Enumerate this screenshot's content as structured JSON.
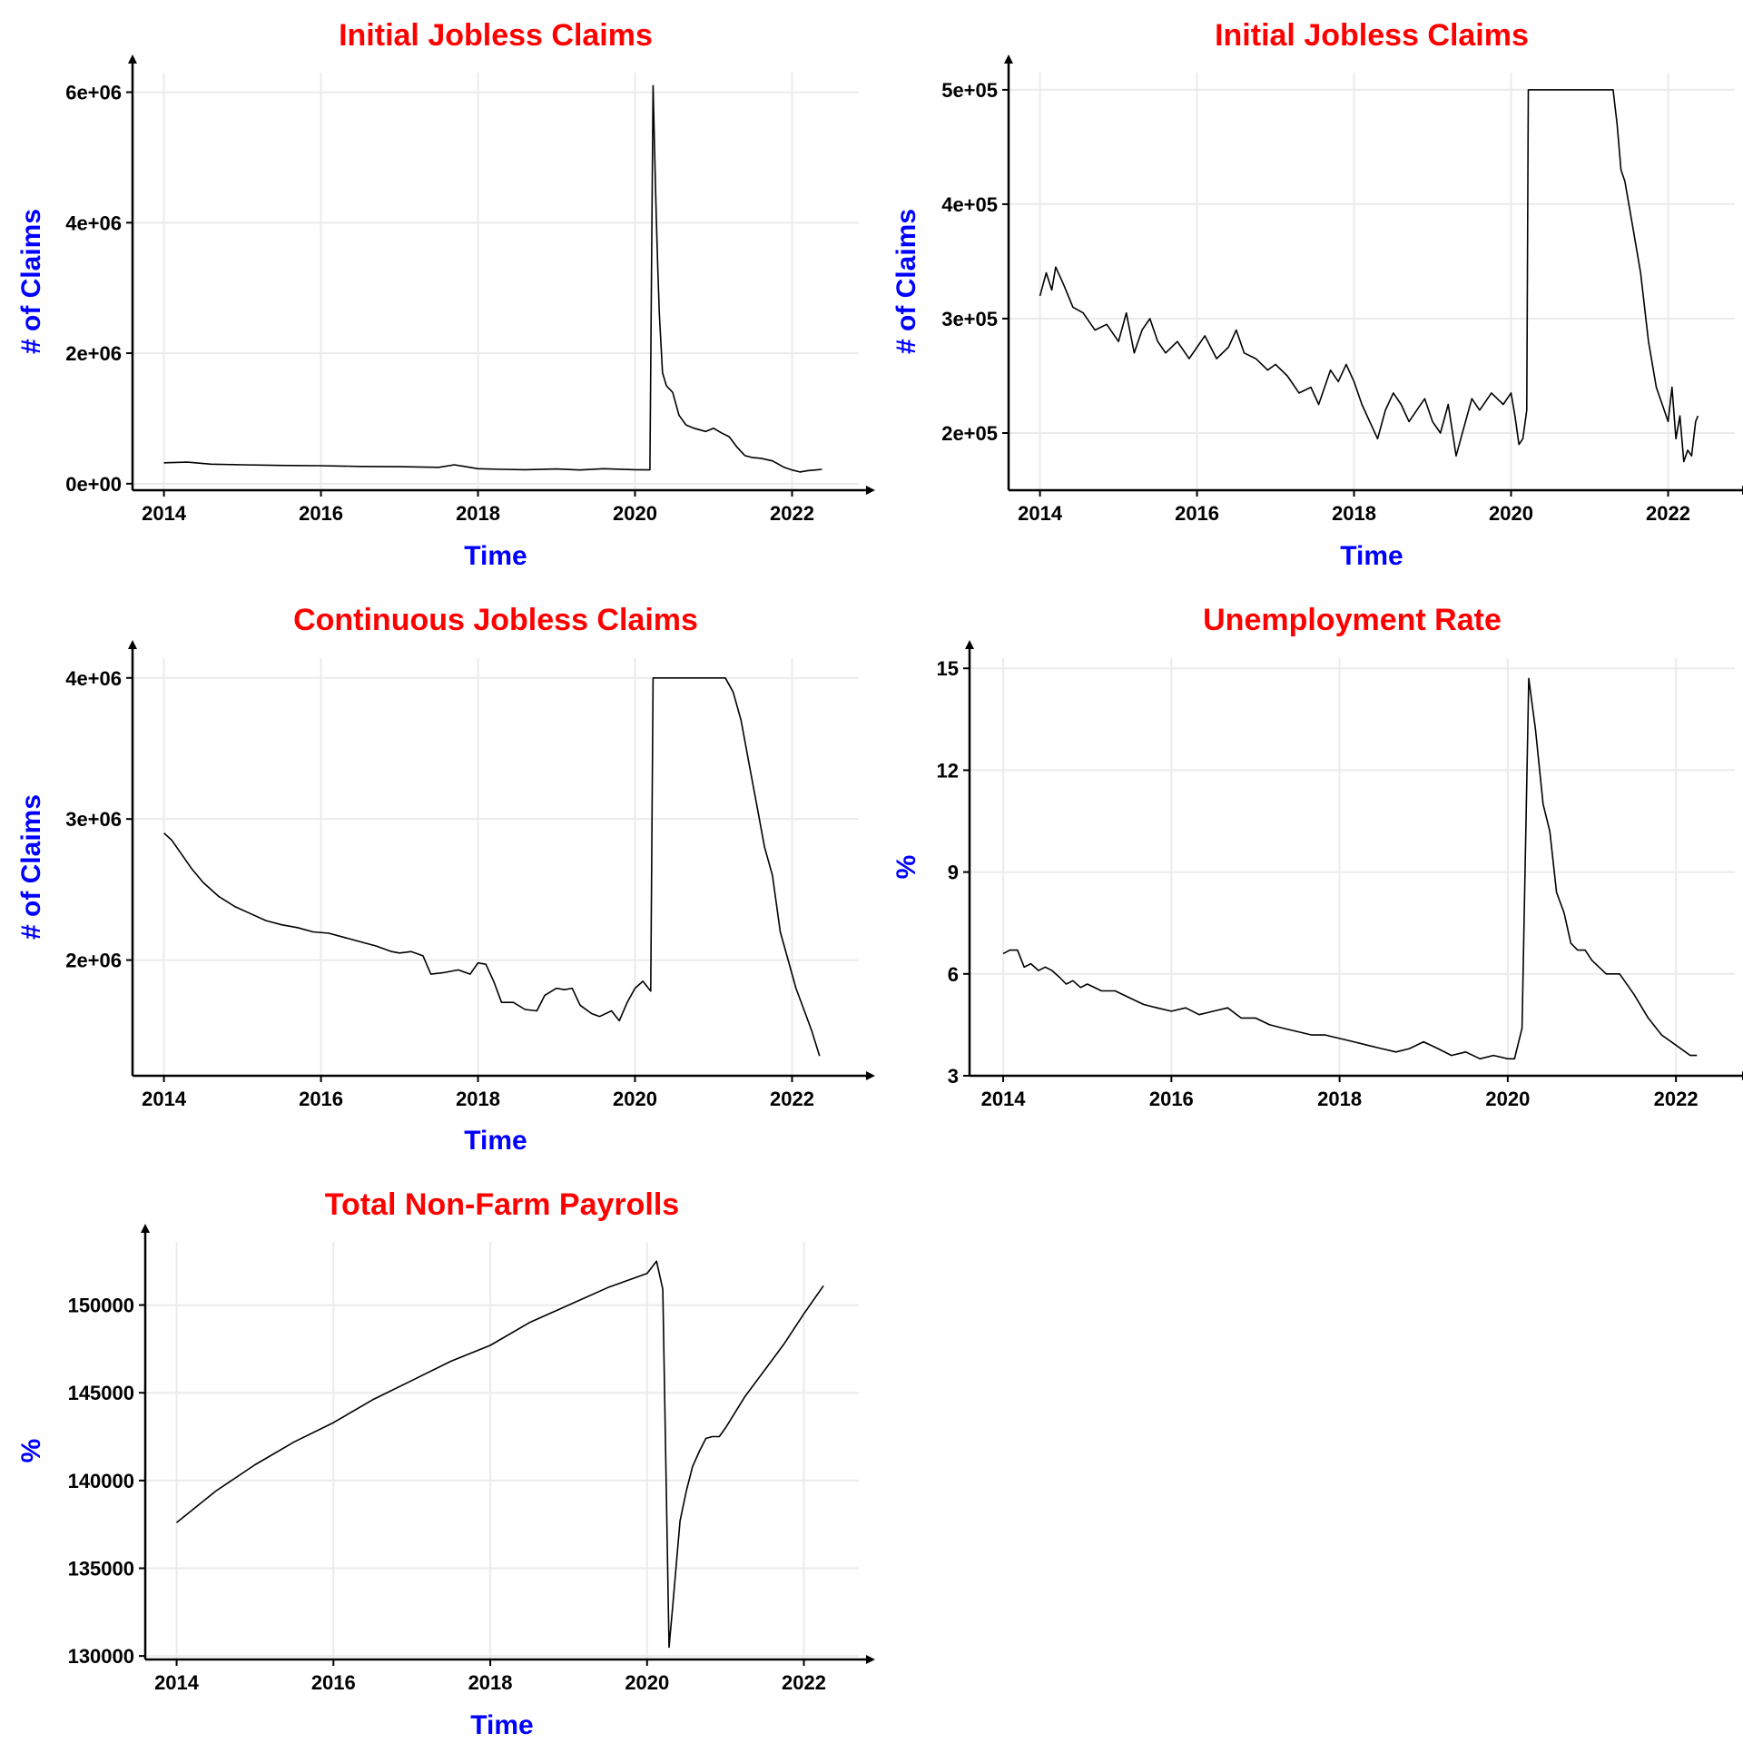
{
  "colors": {
    "title": "#ff0000",
    "axis_title": "#0000ff",
    "line": "#000000",
    "grid": "#ebebeb"
  },
  "chart_data": [
    {
      "type": "line",
      "title": "Initial Jobless Claims",
      "xlabel": "Time",
      "ylabel": "# of Claims",
      "xlim": [
        2013.6,
        2022.85
      ],
      "ylim": [
        -100000,
        6300000
      ],
      "x_ticks": [
        2014,
        2016,
        2018,
        2020,
        2022
      ],
      "x_tick_labels": [
        "2014",
        "2016",
        "2018",
        "2020",
        "2022"
      ],
      "y_ticks": [
        0,
        2000000,
        4000000,
        6000000
      ],
      "y_tick_labels": [
        "0e+00",
        "2e+06",
        "4e+06",
        "6e+06"
      ],
      "grid": true,
      "series": [
        {
          "x": [
            2014.0,
            2014.3,
            2014.6,
            2015.0,
            2015.5,
            2016.0,
            2016.5,
            2017.0,
            2017.5,
            2017.7,
            2018.0,
            2018.3,
            2018.6,
            2019.0,
            2019.3,
            2019.6,
            2020.0,
            2020.19,
            2020.21,
            2020.23,
            2020.25,
            2020.27,
            2020.29,
            2020.31,
            2020.35,
            2020.4,
            2020.48,
            2020.56,
            2020.65,
            2020.75,
            2020.9,
            2021.0,
            2021.1,
            2021.2,
            2021.3,
            2021.4,
            2021.5,
            2021.6,
            2021.75,
            2021.9,
            2022.0,
            2022.1,
            2022.2,
            2022.3,
            2022.38
          ],
          "y": [
            320000,
            330000,
            300000,
            290000,
            280000,
            275000,
            265000,
            260000,
            250000,
            290000,
            230000,
            220000,
            215000,
            225000,
            210000,
            230000,
            215000,
            211000,
            3300000,
            6100000,
            5100000,
            4100000,
            3300000,
            2600000,
            1700000,
            1500000,
            1400000,
            1050000,
            900000,
            850000,
            800000,
            850000,
            780000,
            720000,
            560000,
            430000,
            400000,
            390000,
            350000,
            250000,
            210000,
            180000,
            200000,
            210000,
            220000
          ]
        }
      ]
    },
    {
      "type": "line",
      "title": "Initial Jobless Claims",
      "xlabel": "Time",
      "ylabel": "# of Claims",
      "xlim": [
        2013.6,
        2022.85
      ],
      "ylim": [
        150000,
        515000
      ],
      "x_ticks": [
        2014,
        2016,
        2018,
        2020,
        2022
      ],
      "x_tick_labels": [
        "2014",
        "2016",
        "2018",
        "2020",
        "2022"
      ],
      "y_ticks": [
        200000,
        300000,
        400000,
        500000
      ],
      "y_tick_labels": [
        "2e+05",
        "3e+05",
        "4e+05",
        "5e+05"
      ],
      "grid": true,
      "series": [
        {
          "x": [
            2014.0,
            2014.08,
            2014.15,
            2014.2,
            2014.3,
            2014.42,
            2014.55,
            2014.7,
            2014.85,
            2015.0,
            2015.1,
            2015.2,
            2015.3,
            2015.4,
            2015.5,
            2015.6,
            2015.75,
            2015.9,
            2016.0,
            2016.1,
            2016.25,
            2016.4,
            2016.5,
            2016.6,
            2016.75,
            2016.9,
            2017.0,
            2017.15,
            2017.3,
            2017.45,
            2017.55,
            2017.65,
            2017.7,
            2017.8,
            2017.9,
            2018.0,
            2018.1,
            2018.2,
            2018.3,
            2018.4,
            2018.5,
            2018.6,
            2018.7,
            2018.8,
            2018.9,
            2019.0,
            2019.1,
            2019.2,
            2019.3,
            2019.4,
            2019.5,
            2019.6,
            2019.75,
            2019.9,
            2020.0,
            2020.05,
            2020.1,
            2020.15,
            2020.2,
            2020.22,
            2021.3,
            2021.35,
            2021.4,
            2021.45,
            2021.55,
            2021.65,
            2021.75,
            2021.85,
            2021.95,
            2022.0,
            2022.05,
            2022.1,
            2022.15,
            2022.2,
            2022.25,
            2022.3,
            2022.35,
            2022.38
          ],
          "y": [
            320000,
            340000,
            325000,
            345000,
            330000,
            310000,
            305000,
            290000,
            295000,
            280000,
            305000,
            270000,
            290000,
            300000,
            280000,
            270000,
            280000,
            265000,
            275000,
            285000,
            265000,
            275000,
            290000,
            270000,
            265000,
            255000,
            260000,
            250000,
            235000,
            240000,
            225000,
            245000,
            255000,
            245000,
            260000,
            245000,
            225000,
            210000,
            195000,
            220000,
            235000,
            225000,
            210000,
            220000,
            230000,
            210000,
            200000,
            225000,
            180000,
            205000,
            230000,
            220000,
            235000,
            225000,
            235000,
            215000,
            190000,
            195000,
            220000,
            500000,
            500000,
            470000,
            430000,
            420000,
            380000,
            340000,
            280000,
            240000,
            220000,
            210000,
            240000,
            195000,
            215000,
            175000,
            185000,
            180000,
            210000,
            215000
          ]
        }
      ]
    },
    {
      "type": "line",
      "title": "Continuous Jobless Claims",
      "xlabel": "Time",
      "ylabel": "# of Claims",
      "xlim": [
        2013.6,
        2022.85
      ],
      "ylim": [
        1180000,
        4140000
      ],
      "x_ticks": [
        2014,
        2016,
        2018,
        2020,
        2022
      ],
      "x_tick_labels": [
        "2014",
        "2016",
        "2018",
        "2020",
        "2022"
      ],
      "y_ticks": [
        2000000,
        3000000,
        4000000
      ],
      "y_tick_labels": [
        "2e+06",
        "3e+06",
        "4e+06"
      ],
      "grid": true,
      "series": [
        {
          "x": [
            2014.0,
            2014.1,
            2014.2,
            2014.35,
            2014.5,
            2014.7,
            2014.9,
            2015.1,
            2015.3,
            2015.5,
            2015.7,
            2015.9,
            2016.1,
            2016.3,
            2016.5,
            2016.7,
            2016.9,
            2017.0,
            2017.15,
            2017.3,
            2017.4,
            2017.55,
            2017.75,
            2017.9,
            2018.0,
            2018.1,
            2018.2,
            2018.3,
            2018.45,
            2018.6,
            2018.75,
            2018.85,
            2019.0,
            2019.1,
            2019.2,
            2019.3,
            2019.45,
            2019.55,
            2019.7,
            2019.8,
            2019.9,
            2020.0,
            2020.1,
            2020.2,
            2020.23,
            2021.15,
            2021.25,
            2021.35,
            2021.45,
            2021.55,
            2021.65,
            2021.75,
            2021.85,
            2021.95,
            2022.05,
            2022.15,
            2022.25,
            2022.35
          ],
          "y": [
            2900000,
            2850000,
            2770000,
            2650000,
            2550000,
            2450000,
            2380000,
            2330000,
            2280000,
            2250000,
            2230000,
            2200000,
            2190000,
            2160000,
            2130000,
            2100000,
            2060000,
            2050000,
            2060000,
            2030000,
            1900000,
            1910000,
            1930000,
            1900000,
            1980000,
            1970000,
            1850000,
            1700000,
            1700000,
            1650000,
            1640000,
            1750000,
            1800000,
            1790000,
            1800000,
            1680000,
            1620000,
            1600000,
            1640000,
            1570000,
            1700000,
            1800000,
            1850000,
            1780000,
            4000000,
            4000000,
            3900000,
            3700000,
            3400000,
            3100000,
            2800000,
            2600000,
            2200000,
            2000000,
            1800000,
            1650000,
            1500000,
            1320000
          ]
        }
      ]
    },
    {
      "type": "line",
      "title": "Unemployment Rate",
      "xlabel": "",
      "ylabel": "%",
      "xlim": [
        2013.6,
        2022.7
      ],
      "ylim": [
        3.0,
        15.3
      ],
      "x_ticks": [
        2014,
        2016,
        2018,
        2020,
        2022
      ],
      "x_tick_labels": [
        "2014",
        "2016",
        "2018",
        "2020",
        "2022"
      ],
      "y_ticks": [
        3,
        6,
        9,
        12,
        15
      ],
      "y_tick_labels": [
        "3",
        "6",
        "9",
        "12",
        "15"
      ],
      "grid": true,
      "series": [
        {
          "x": [
            2014.0,
            2014.08,
            2014.17,
            2014.25,
            2014.33,
            2014.42,
            2014.5,
            2014.58,
            2014.67,
            2014.75,
            2014.83,
            2014.92,
            2015.0,
            2015.17,
            2015.33,
            2015.5,
            2015.67,
            2015.83,
            2016.0,
            2016.17,
            2016.33,
            2016.5,
            2016.67,
            2016.83,
            2017.0,
            2017.17,
            2017.33,
            2017.5,
            2017.67,
            2017.83,
            2018.0,
            2018.17,
            2018.33,
            2018.5,
            2018.67,
            2018.83,
            2019.0,
            2019.17,
            2019.33,
            2019.5,
            2019.67,
            2019.83,
            2020.0,
            2020.08,
            2020.17,
            2020.25,
            2020.33,
            2020.42,
            2020.5,
            2020.58,
            2020.67,
            2020.75,
            2020.83,
            2020.92,
            2021.0,
            2021.17,
            2021.33,
            2021.5,
            2021.67,
            2021.83,
            2022.0,
            2022.17,
            2022.25
          ],
          "y": [
            6.6,
            6.7,
            6.7,
            6.2,
            6.3,
            6.1,
            6.2,
            6.1,
            5.9,
            5.7,
            5.8,
            5.6,
            5.7,
            5.5,
            5.5,
            5.3,
            5.1,
            5.0,
            4.9,
            5.0,
            4.8,
            4.9,
            5.0,
            4.7,
            4.7,
            4.5,
            4.4,
            4.3,
            4.2,
            4.2,
            4.1,
            4.0,
            3.9,
            3.8,
            3.7,
            3.8,
            4.0,
            3.8,
            3.6,
            3.7,
            3.5,
            3.6,
            3.5,
            3.5,
            4.4,
            14.7,
            13.2,
            11.0,
            10.2,
            8.4,
            7.8,
            6.9,
            6.7,
            6.7,
            6.4,
            6.0,
            6.0,
            5.4,
            4.7,
            4.2,
            3.9,
            3.6,
            3.6
          ]
        }
      ]
    },
    {
      "type": "line",
      "title": "Total Non-Farm Payrolls",
      "xlabel": "Time",
      "ylabel": "%",
      "xlim": [
        2013.6,
        2022.7
      ],
      "ylim": [
        129800,
        153600
      ],
      "x_ticks": [
        2014,
        2016,
        2018,
        2020,
        2022
      ],
      "x_tick_labels": [
        "2014",
        "2016",
        "2018",
        "2020",
        "2022"
      ],
      "y_ticks": [
        130000,
        135000,
        140000,
        145000,
        150000
      ],
      "y_tick_labels": [
        "130000",
        "135000",
        "140000",
        "145000",
        "150000"
      ],
      "grid": true,
      "series": [
        {
          "x": [
            2014.0,
            2014.5,
            2015.0,
            2015.5,
            2016.0,
            2016.5,
            2017.0,
            2017.5,
            2018.0,
            2018.5,
            2019.0,
            2019.5,
            2020.0,
            2020.12,
            2020.2,
            2020.28,
            2020.33,
            2020.42,
            2020.5,
            2020.58,
            2020.67,
            2020.75,
            2020.83,
            2020.92,
            2021.0,
            2021.25,
            2021.5,
            2021.75,
            2022.0,
            2022.25
          ],
          "y": [
            137600,
            139400,
            140900,
            142200,
            143300,
            144600,
            145700,
            146800,
            147700,
            149000,
            150000,
            151000,
            151800,
            152500,
            150900,
            130500,
            133000,
            137700,
            139400,
            140800,
            141700,
            142400,
            142500,
            142500,
            143000,
            144800,
            146300,
            147800,
            149500,
            151100
          ]
        }
      ]
    }
  ]
}
